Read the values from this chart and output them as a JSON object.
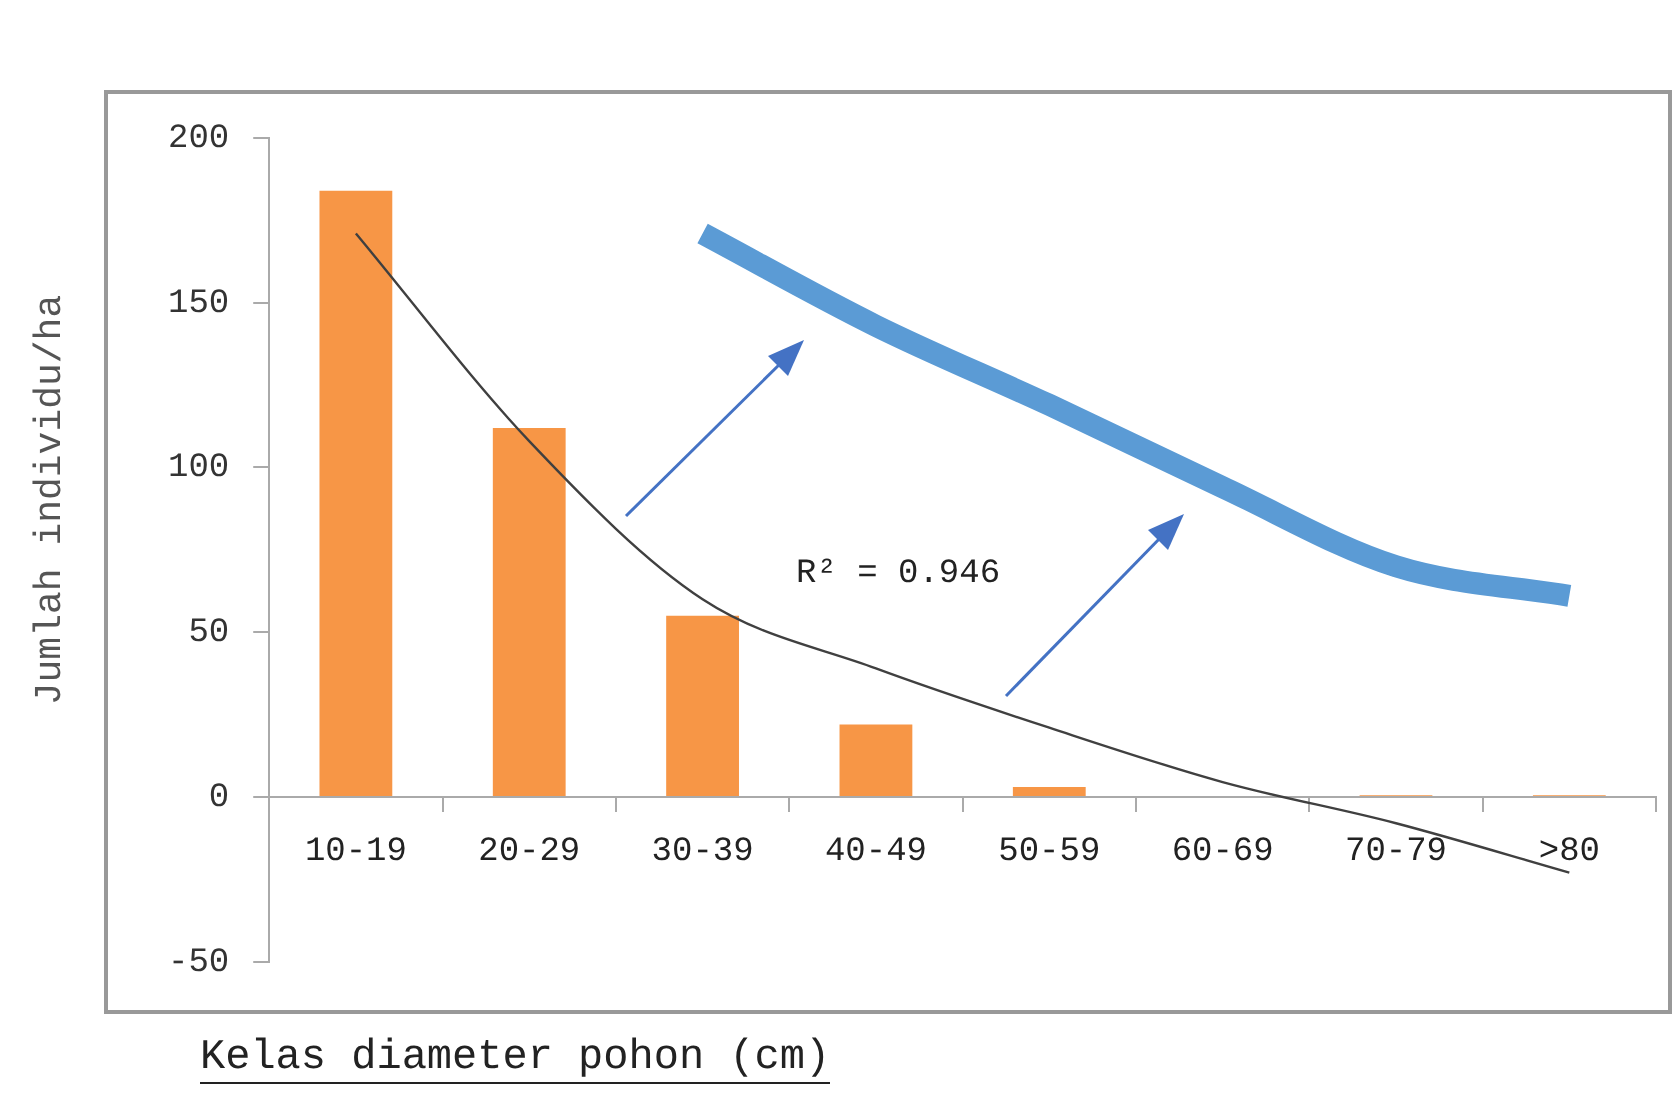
{
  "chart_data": {
    "type": "bar",
    "xlabel": "Kelas diameter pohon (cm)",
    "ylabel": "Jumlah individu/ha",
    "categories": [
      "10-19",
      "20-29",
      "30-39",
      "40-49",
      "50-59",
      "60-69",
      "70-79",
      ">80"
    ],
    "series": [
      {
        "color": "#f79646",
        "values": [
          184,
          112,
          55,
          22,
          3,
          0,
          0.5,
          0.5
        ]
      },
      {
        "type": "line",
        "color": "#404040",
        "values": [
          171,
          108,
          60,
          39,
          21,
          4.5,
          -8,
          -23
        ]
      },
      {
        "type": "line",
        "color": "#5b9bd5",
        "values": [
          null,
          null,
          171,
          143,
          119,
          94,
          70,
          61
        ]
      }
    ],
    "ylim": [
      -50,
      200
    ],
    "yticks": [
      -50,
      0,
      50,
      100,
      150,
      200
    ],
    "annotations": [
      "R² = 0.946"
    ],
    "grid": false,
    "legend": false,
    "marker": "none",
    "line_style": "solid"
  }
}
